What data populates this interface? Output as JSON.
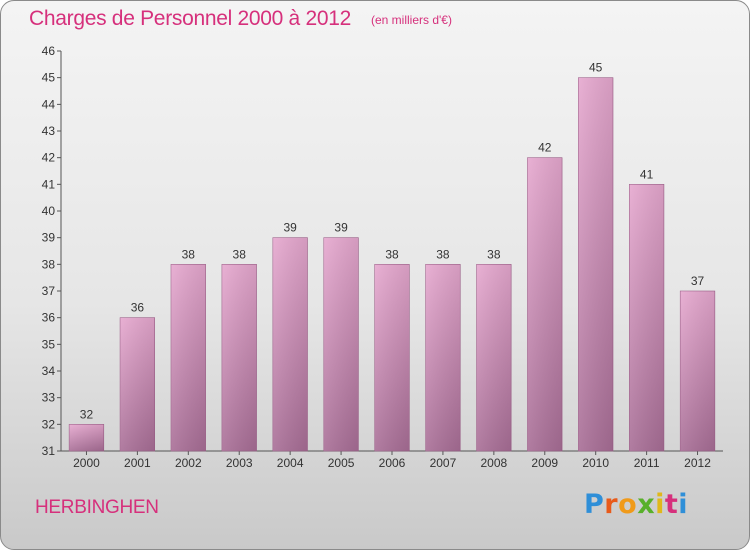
{
  "header": {
    "title": "Charges de Personnel 2000 à 2012",
    "subtitle": "(en milliers d'€)"
  },
  "footer": {
    "commune": "HERBINGHEN",
    "logo": "Proxiti"
  },
  "colors": {
    "accent": "#d6307c",
    "bar_top": "#e6a8cf",
    "bar_bottom": "#a86e96",
    "logo_letters": [
      "#2f8fd8",
      "#e85a1a",
      "#f09a1a",
      "#58b02a",
      "#e0b81a",
      "#d6307c",
      "#2f8fd8"
    ]
  },
  "chart_data": {
    "type": "bar",
    "categories": [
      "2000",
      "2001",
      "2002",
      "2003",
      "2004",
      "2005",
      "2006",
      "2007",
      "2008",
      "2009",
      "2010",
      "2011",
      "2012"
    ],
    "values": [
      32,
      36,
      38,
      38,
      39,
      39,
      38,
      38,
      38,
      42,
      45,
      41,
      37
    ],
    "data_labels": [
      "32",
      "36",
      "38",
      "38",
      "39",
      "39",
      "38",
      "38",
      "38",
      "42",
      "45",
      "41",
      "37"
    ],
    "yticks": [
      "31",
      "32",
      "33",
      "34",
      "35",
      "36",
      "37",
      "38",
      "39",
      "40",
      "41",
      "42",
      "43",
      "44",
      "45",
      "46"
    ],
    "ylim": [
      31,
      46
    ],
    "title": "Charges de Personnel 2000 à 2012",
    "xlabel": "",
    "ylabel": "",
    "grid": false,
    "legend": "none"
  }
}
